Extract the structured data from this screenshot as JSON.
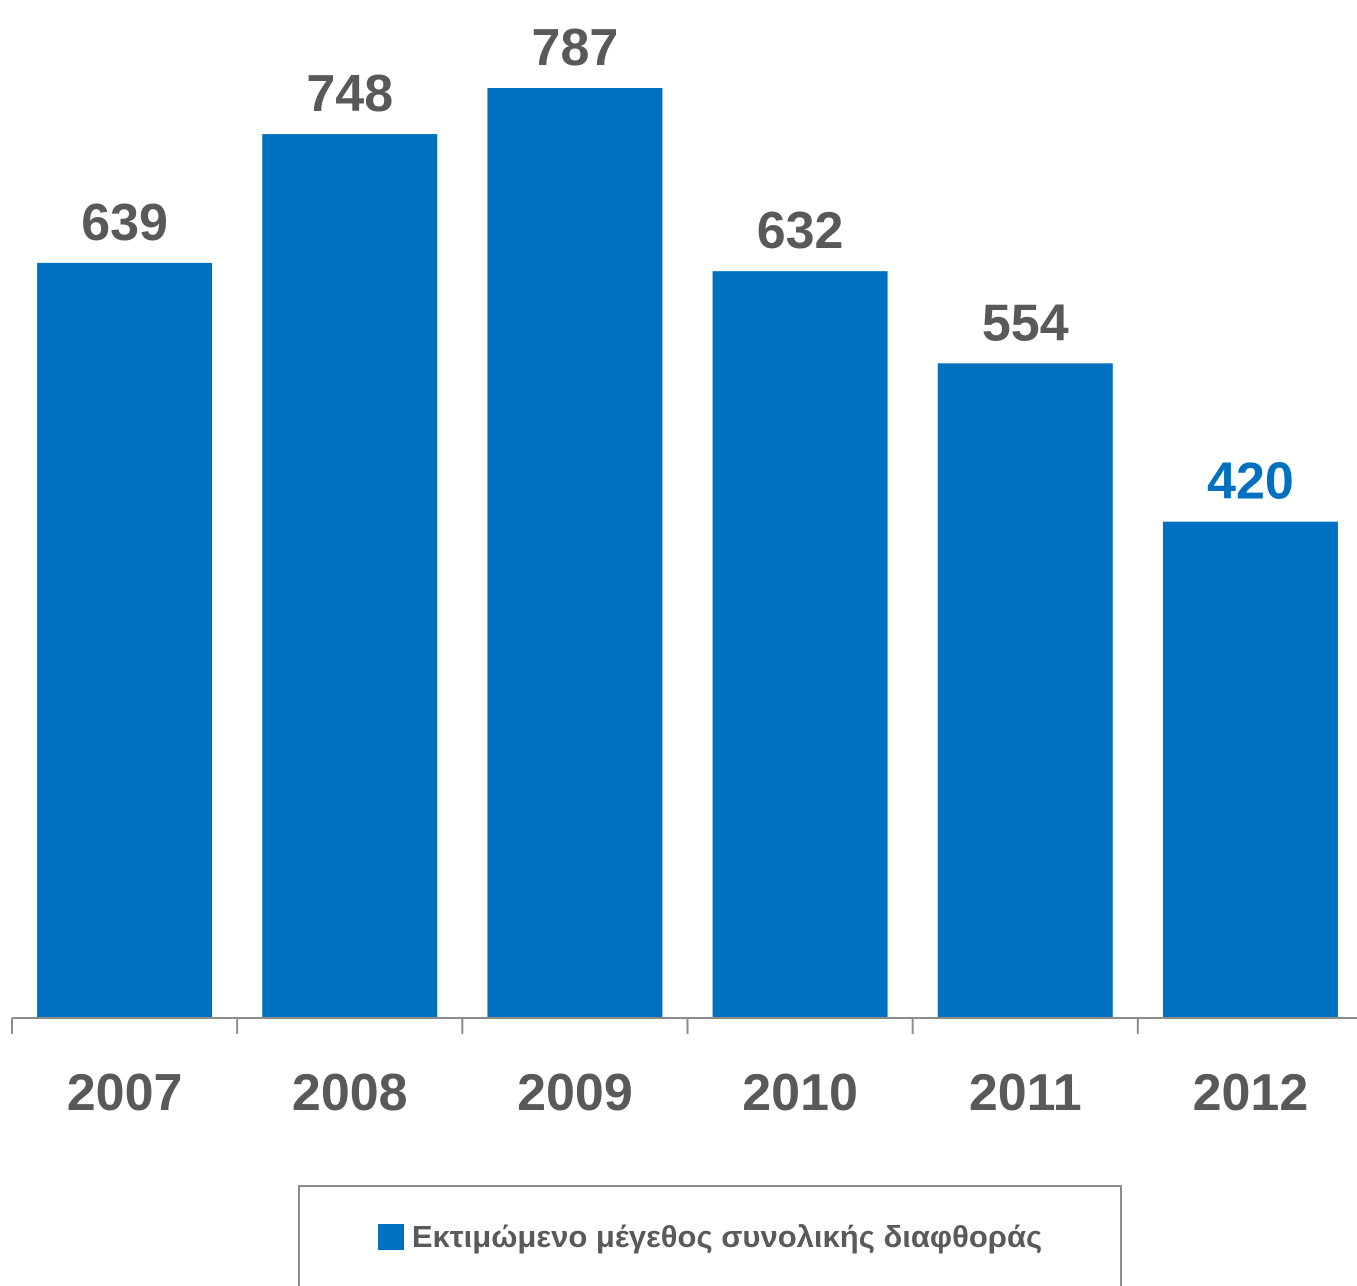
{
  "chart_data": {
    "type": "bar",
    "categories": [
      "2007",
      "2008",
      "2009",
      "2010",
      "2011",
      "2012"
    ],
    "series": [
      {
        "name": "Εκτιμώμενο μέγεθος συνολικής διαφθοράς",
        "values": [
          639,
          748,
          787,
          632,
          554,
          420
        ],
        "color": "#0070c0"
      }
    ],
    "data_label_colors": [
      "#595959",
      "#595959",
      "#595959",
      "#595959",
      "#595959",
      "#0070c0"
    ],
    "ylim": [
      0,
      850
    ],
    "grid": false,
    "legend_position": "bottom"
  }
}
